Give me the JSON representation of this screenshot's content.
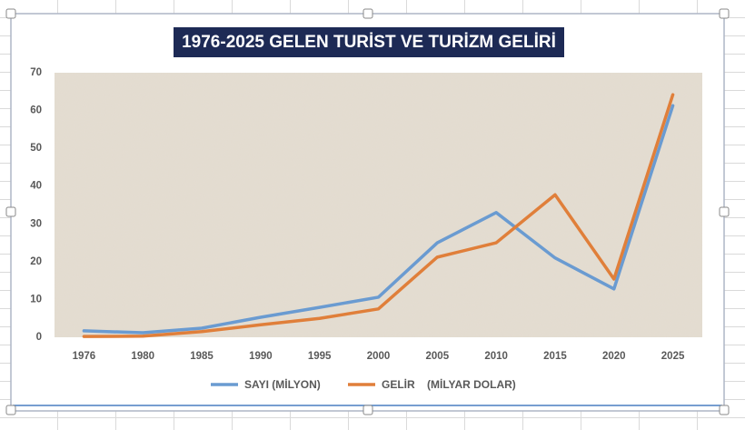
{
  "chart_data": {
    "type": "line",
    "title": "1976-2025 GELEN TURİST VE TURİZM GELİRİ",
    "categories": [
      "1976",
      "1980",
      "1985",
      "1990",
      "1995",
      "2000",
      "2005",
      "2010",
      "2015",
      "2020",
      "2025"
    ],
    "series": [
      {
        "name": "SAYI (MİLYON)",
        "color": "#6a9bd1",
        "values": [
          1.7,
          1.2,
          2.4,
          5.3,
          7.9,
          10.6,
          25,
          33,
          21,
          12.8,
          61.3
        ]
      },
      {
        "name": "GELİR    (MİLYAR DOLAR)",
        "color": "#e07f3a",
        "values": [
          0.2,
          0.3,
          1.5,
          3.3,
          5,
          7.5,
          21.2,
          25,
          37.7,
          15.4,
          64.2
        ]
      }
    ],
    "ylim": [
      0,
      70
    ],
    "yticks": [
      0,
      10,
      20,
      30,
      40,
      50,
      60,
      70
    ],
    "grid": false,
    "legend": "bottom"
  }
}
